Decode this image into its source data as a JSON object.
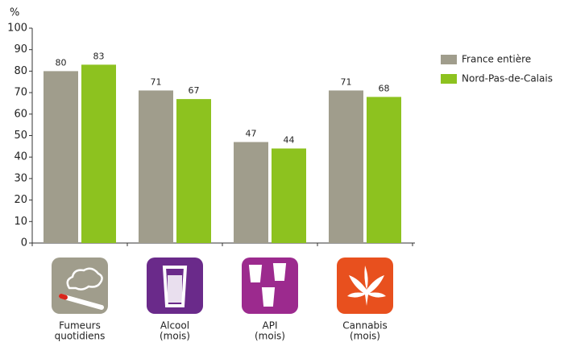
{
  "chart_data": {
    "type": "bar",
    "y_label": "%",
    "categories": [
      [
        "Fumeurs",
        "quotidiens"
      ],
      [
        "Alcool",
        "(mois)"
      ],
      [
        "API",
        "(mois)"
      ],
      [
        "Cannabis",
        "(mois)"
      ]
    ],
    "series": [
      {
        "name": "France entière",
        "color": "#a09d8c",
        "values": [
          80,
          71,
          47,
          71
        ]
      },
      {
        "name": "Nord-Pas-de-Calais",
        "color": "#8dc21f",
        "values": [
          83,
          67,
          44,
          68
        ]
      }
    ],
    "ylim": [
      0,
      100
    ],
    "yticks": [
      0,
      10,
      20,
      30,
      40,
      50,
      60,
      70,
      80,
      90,
      100
    ],
    "legend": "right"
  }
}
